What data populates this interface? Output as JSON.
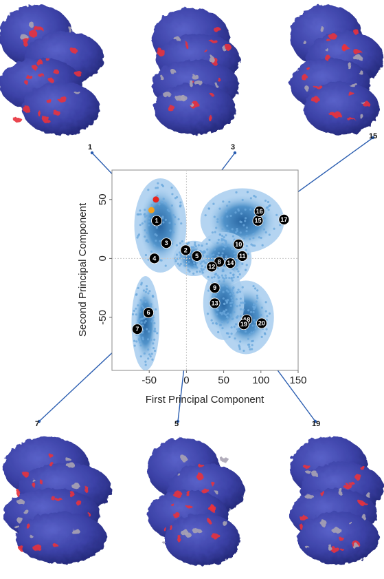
{
  "chart_data": {
    "type": "scatter",
    "xlabel": "First Principal Component",
    "ylabel": "Second Principal Component",
    "xlim": [
      -100,
      150
    ],
    "ylim": [
      -95,
      75
    ],
    "xticks": [
      "-50",
      "0",
      "50",
      "100",
      "150"
    ],
    "xtick_values": [
      -50,
      0,
      50,
      100,
      150
    ],
    "yticks": [
      "-50",
      "0",
      "50"
    ],
    "ytick_values": [
      -50,
      0,
      50
    ],
    "reference_lines": [
      {
        "axis": "x",
        "value": 0
      },
      {
        "axis": "y",
        "value": 0
      }
    ],
    "density_color": "#4a90c8",
    "density_regions": [
      {
        "cx": -35,
        "cy": 28,
        "rx": 28,
        "ry": 32
      },
      {
        "cx": -55,
        "cy": -55,
        "rx": 15,
        "ry": 32
      },
      {
        "cx": 10,
        "cy": 0,
        "rx": 22,
        "ry": 12
      },
      {
        "cx": 75,
        "cy": 32,
        "rx": 45,
        "ry": 22
      },
      {
        "cx": 50,
        "cy": 0,
        "rx": 30,
        "ry": 18
      },
      {
        "cx": 80,
        "cy": -50,
        "rx": 30,
        "ry": 25
      },
      {
        "cx": 50,
        "cy": -38,
        "rx": 22,
        "ry": 25
      }
    ],
    "highlight_points": [
      {
        "x": -41,
        "y": 50,
        "color": "#e8231c"
      },
      {
        "x": -47,
        "y": 41,
        "color": "#f2a01f"
      }
    ],
    "markers": [
      {
        "label": "1",
        "x": -40,
        "y": 32
      },
      {
        "label": "2",
        "x": -1,
        "y": 7
      },
      {
        "label": "3",
        "x": -27,
        "y": 13
      },
      {
        "label": "4",
        "x": -43,
        "y": 0
      },
      {
        "label": "5",
        "x": 14,
        "y": 2
      },
      {
        "label": "6",
        "x": -51,
        "y": -46
      },
      {
        "label": "7",
        "x": -66,
        "y": -60
      },
      {
        "label": "8",
        "x": 44,
        "y": -3
      },
      {
        "label": "9",
        "x": 38,
        "y": -25
      },
      {
        "label": "10",
        "x": 70,
        "y": 12
      },
      {
        "label": "11",
        "x": 75,
        "y": 2
      },
      {
        "label": "12",
        "x": 34,
        "y": -7
      },
      {
        "label": "13",
        "x": 38,
        "y": -38
      },
      {
        "label": "14",
        "x": 59,
        "y": -4
      },
      {
        "label": "15",
        "x": 96,
        "y": 32
      },
      {
        "label": "16",
        "x": 98,
        "y": 40
      },
      {
        "label": "17",
        "x": 131,
        "y": 33
      },
      {
        "label": "18",
        "x": 81,
        "y": -52
      },
      {
        "label": "19",
        "x": 77,
        "y": -56
      },
      {
        "label": "20",
        "x": 101,
        "y": -55
      }
    ]
  },
  "structures": [
    {
      "label": "1",
      "points_to": "1"
    },
    {
      "label": "3",
      "points_to": "3"
    },
    {
      "label": "15",
      "points_to": "15"
    },
    {
      "label": "7",
      "points_to": "7"
    },
    {
      "label": "5",
      "points_to": "5"
    },
    {
      "label": "19",
      "points_to": "19"
    }
  ],
  "colors": {
    "protein_surface": "#3b41a6",
    "protein_highlight": "#e8323c",
    "protein_neutral": "#a9a3b2",
    "connector_line": "#2a5db0"
  }
}
